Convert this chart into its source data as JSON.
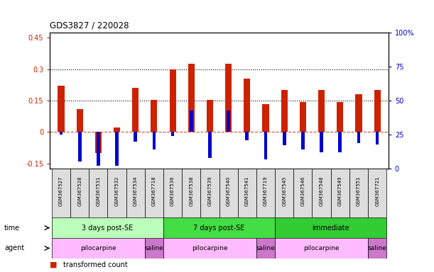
{
  "title": "GDS3827 / 220028",
  "samples": [
    "GSM367527",
    "GSM367528",
    "GSM367531",
    "GSM367532",
    "GSM367534",
    "GSM367718",
    "GSM367536",
    "GSM367538",
    "GSM367539",
    "GSM367540",
    "GSM367541",
    "GSM367719",
    "GSM367545",
    "GSM367546",
    "GSM367548",
    "GSM367549",
    "GSM367551",
    "GSM367721"
  ],
  "red_values": [
    0.22,
    0.11,
    -0.1,
    0.02,
    0.21,
    0.155,
    0.3,
    0.325,
    0.155,
    0.325,
    0.255,
    0.135,
    0.2,
    0.145,
    0.2,
    0.145,
    0.18,
    0.2
  ],
  "blue_pct": [
    25,
    5,
    2,
    2,
    20,
    14,
    24,
    43,
    8,
    43,
    21,
    7,
    17,
    14,
    12,
    12,
    19,
    18
  ],
  "time_groups": [
    {
      "label": "3 days post-SE",
      "start": 0,
      "end": 5,
      "color": "#bbffbb"
    },
    {
      "label": "7 days post-SE",
      "start": 6,
      "end": 11,
      "color": "#44dd44"
    },
    {
      "label": "immediate",
      "start": 12,
      "end": 17,
      "color": "#33cc33"
    }
  ],
  "agent_groups": [
    {
      "label": "pilocarpine",
      "start": 0,
      "end": 4,
      "color": "#ffbbff"
    },
    {
      "label": "saline",
      "start": 5,
      "end": 5,
      "color": "#cc77cc"
    },
    {
      "label": "pilocarpine",
      "start": 6,
      "end": 10,
      "color": "#ffbbff"
    },
    {
      "label": "saline",
      "start": 11,
      "end": 11,
      "color": "#cc77cc"
    },
    {
      "label": "pilocarpine",
      "start": 12,
      "end": 16,
      "color": "#ffbbff"
    },
    {
      "label": "saline",
      "start": 17,
      "end": 17,
      "color": "#cc77cc"
    }
  ],
  "ylim_left": [
    -0.175,
    0.475
  ],
  "ylim_right": [
    0,
    100
  ],
  "yticks_left": [
    -0.15,
    0.0,
    0.15,
    0.3,
    0.45
  ],
  "yticks_right": [
    0,
    25,
    50,
    75,
    100
  ],
  "hlines": [
    0.15,
    0.3
  ],
  "red_color": "#cc2200",
  "blue_color": "#0000cc",
  "zero_line_color": "#cc2200",
  "background_color": "#ffffff",
  "bar_width": 0.35,
  "blue_bar_width": 0.18
}
